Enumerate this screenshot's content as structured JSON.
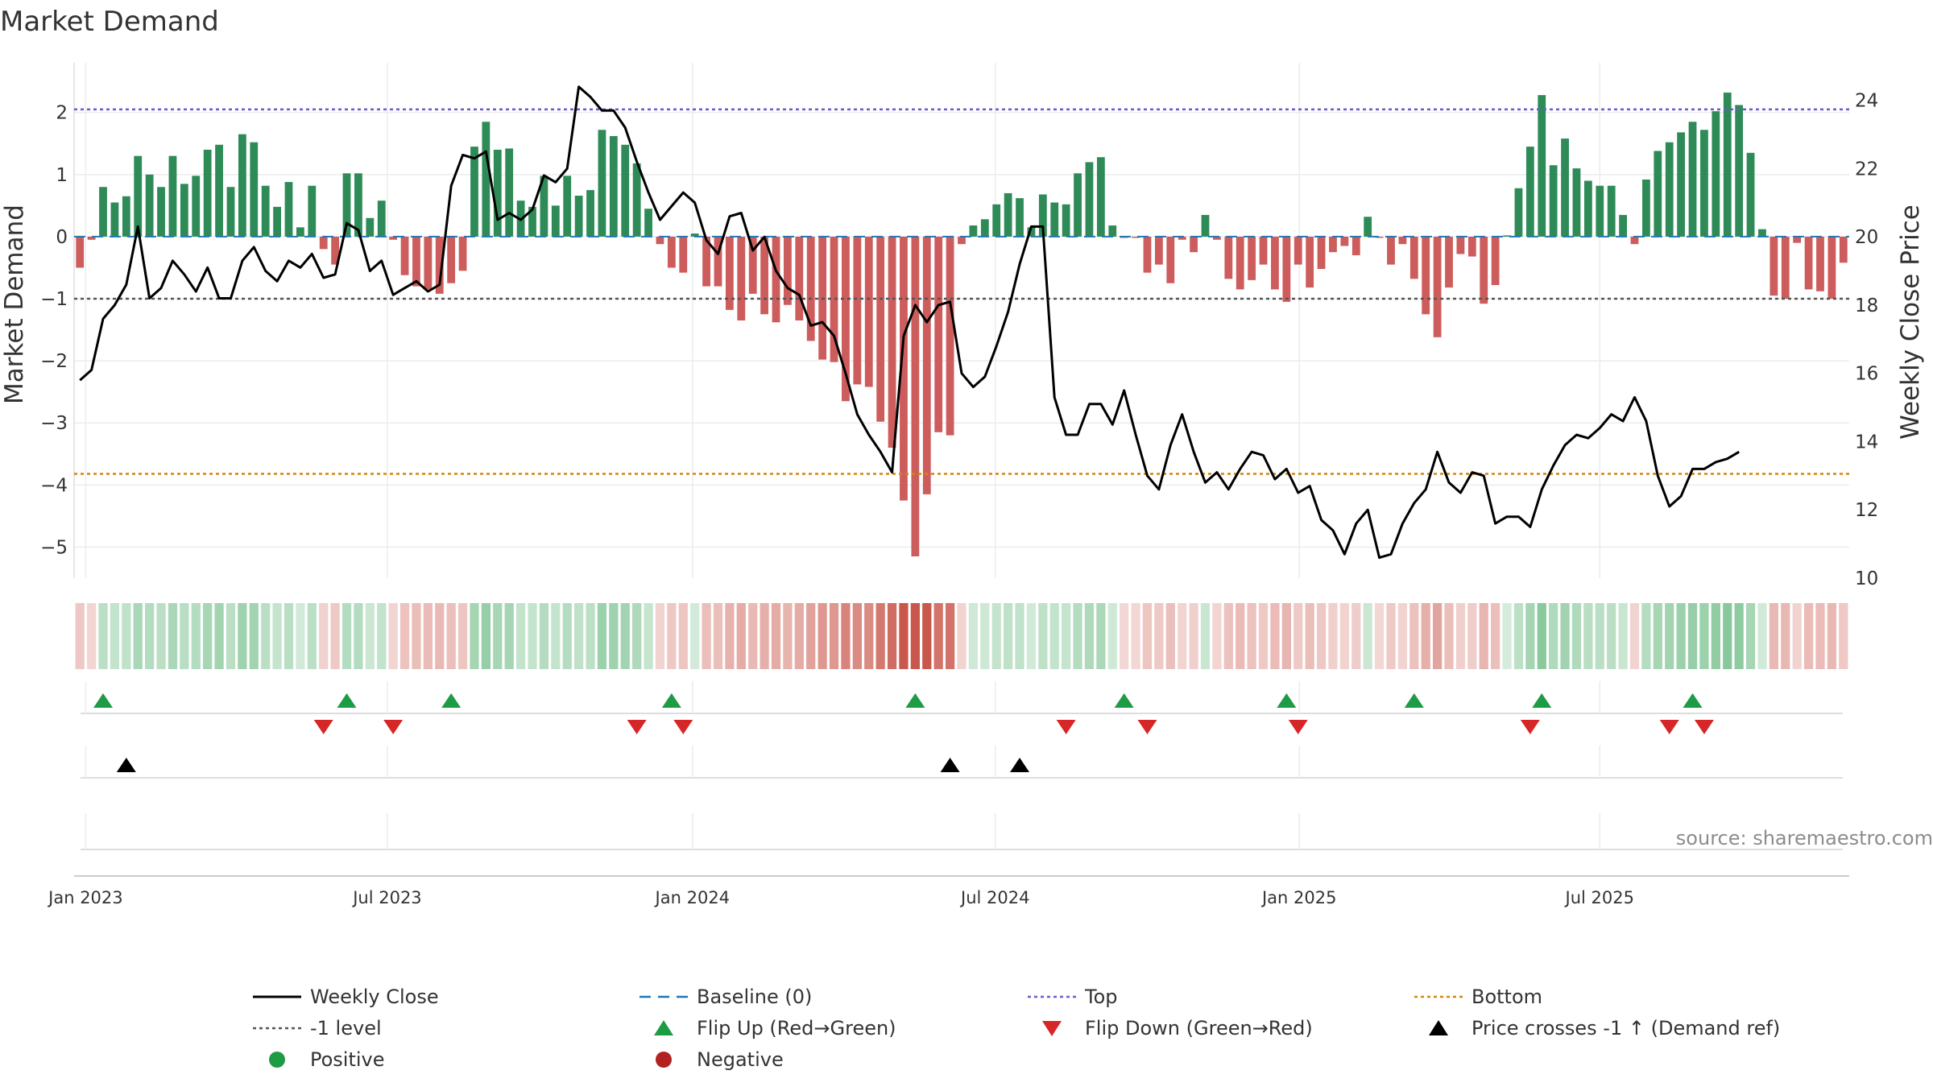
{
  "chart_data": {
    "type": "bar",
    "title": "Market Demand",
    "ylabel_left": "Market Demand",
    "ylabel_right": "Weekly Close Price",
    "ylim_left": [
      -5.5,
      2.8
    ],
    "ylim_right": [
      10,
      25.1
    ],
    "yticks_left": [
      "2",
      "1",
      "0",
      "−1",
      "−2",
      "−3",
      "−4",
      "−5"
    ],
    "yticks_right": [
      "24",
      "22",
      "20",
      "18",
      "16",
      "14",
      "12",
      "10"
    ],
    "yticks_left_values": [
      2,
      1,
      0,
      -1,
      -2,
      -3,
      -4,
      -5
    ],
    "yticks_right_values": [
      24,
      22,
      20,
      18,
      16,
      14,
      12,
      10
    ],
    "xticks": [
      "Jan 2023",
      "Jul 2023",
      "Jan 2024",
      "Jul 2024",
      "Jan 2025",
      "Jul 2025"
    ],
    "xticks_week_index": [
      1,
      27,
      53.3,
      79.4,
      105.6,
      131.5
    ],
    "reference_lines": {
      "top": 2.05,
      "minus_one": -1,
      "bottom": -3.82,
      "baseline": 0
    },
    "demand": [
      -0.5,
      -0.05,
      0.8,
      0.55,
      0.65,
      1.3,
      1.0,
      0.8,
      1.3,
      0.85,
      0.98,
      1.4,
      1.48,
      0.8,
      1.65,
      1.52,
      0.82,
      0.48,
      0.88,
      0.15,
      0.82,
      -0.2,
      -0.45,
      1.02,
      1.02,
      0.3,
      0.58,
      -0.05,
      -0.62,
      -0.8,
      -0.85,
      -0.92,
      -0.75,
      -0.55,
      1.45,
      1.85,
      1.4,
      1.42,
      0.58,
      0.48,
      0.98,
      0.5,
      0.98,
      0.66,
      0.75,
      1.72,
      1.62,
      1.48,
      1.18,
      0.45,
      -0.12,
      -0.5,
      -0.58,
      0.05,
      -0.8,
      -0.8,
      -1.18,
      -1.35,
      -0.92,
      -1.25,
      -1.38,
      -1.1,
      -1.35,
      -1.68,
      -1.98,
      -2.02,
      -2.65,
      -2.38,
      -2.42,
      -2.98,
      -3.4,
      -4.25,
      -5.15,
      -4.15,
      -3.15,
      -3.2,
      -0.12,
      0.18,
      0.28,
      0.52,
      0.7,
      0.62,
      0.15,
      0.68,
      0.55,
      0.52,
      1.02,
      1.2,
      1.28,
      0.18,
      -0.02,
      -0.02,
      -0.58,
      -0.45,
      -0.75,
      -0.05,
      -0.25,
      0.35,
      -0.05,
      -0.68,
      -0.85,
      -0.7,
      -0.45,
      -0.85,
      -1.05,
      -0.45,
      -0.82,
      -0.52,
      -0.25,
      -0.15,
      -0.3,
      0.32,
      -0.02,
      -0.45,
      -0.12,
      -0.68,
      -1.25,
      -1.62,
      -0.82,
      -0.28,
      -0.32,
      -1.08,
      -0.78,
      0.02,
      0.78,
      1.45,
      2.28,
      1.15,
      1.58,
      1.1,
      0.9,
      0.82,
      0.82,
      0.35,
      -0.12,
      0.92,
      1.38,
      1.52,
      1.68,
      1.85,
      1.72,
      2.02,
      2.32,
      2.12,
      1.35,
      0.12,
      -0.95,
      -1.0,
      -0.1,
      -0.85,
      -0.88,
      -1.0,
      -0.42
    ],
    "weekly_close": [
      15.8,
      16.1,
      17.6,
      18.0,
      18.6,
      20.3,
      18.2,
      18.5,
      19.3,
      18.9,
      18.4,
      19.1,
      18.2,
      18.2,
      19.3,
      19.7,
      19.0,
      18.7,
      19.3,
      19.1,
      19.5,
      18.8,
      18.9,
      20.4,
      20.2,
      19.0,
      19.3,
      18.3,
      18.5,
      18.7,
      18.4,
      18.6,
      21.5,
      22.4,
      22.3,
      22.5,
      20.5,
      20.7,
      20.5,
      20.8,
      21.8,
      21.6,
      22.0,
      24.4,
      24.1,
      23.7,
      23.7,
      23.2,
      22.2,
      21.3,
      20.5,
      20.9,
      21.3,
      21.0,
      19.9,
      19.5,
      20.6,
      20.7,
      19.6,
      20.0,
      19.0,
      18.5,
      18.3,
      17.4,
      17.5,
      17.1,
      16.0,
      14.8,
      14.2,
      13.7,
      13.1,
      17.1,
      18.0,
      17.5,
      18.0,
      18.1,
      16.0,
      15.6,
      15.9,
      16.8,
      17.8,
      19.2,
      20.3,
      20.3,
      15.3,
      14.2,
      14.2,
      15.1,
      15.1,
      14.5,
      15.5,
      14.2,
      13.0,
      12.6,
      13.9,
      14.8,
      13.7,
      12.8,
      13.1,
      12.6,
      13.2,
      13.7,
      13.6,
      12.9,
      13.2,
      12.5,
      12.7,
      11.7,
      11.4,
      10.7,
      11.6,
      12.0,
      10.6,
      10.7,
      11.6,
      12.2,
      12.6,
      13.7,
      12.8,
      12.5,
      13.1,
      13.0,
      11.6,
      11.8,
      11.8,
      11.5,
      12.6,
      13.3,
      13.9,
      14.2,
      14.1,
      14.4,
      14.8,
      14.6,
      15.3,
      14.6,
      13.0,
      12.1,
      12.4,
      13.2,
      13.2,
      13.4,
      13.5,
      13.7
    ],
    "flip_up_weeks": [
      2,
      23,
      32,
      51,
      72,
      90,
      104,
      115,
      126,
      139
    ],
    "flip_down_weeks": [
      21,
      27,
      48,
      52,
      85,
      92,
      105,
      125,
      137,
      140
    ],
    "price_cross_weeks": [
      4,
      75,
      81
    ],
    "source": "source: sharemaestro.com",
    "legend": [
      {
        "label": "Weekly Close",
        "symbol": "line-solid",
        "color": "#000000"
      },
      {
        "label": "Baseline (0)",
        "symbol": "line-dashed",
        "color": "#1f77b4"
      },
      {
        "label": "Top",
        "symbol": "line-dotted",
        "color": "#6a5acd"
      },
      {
        "label": "Bottom",
        "symbol": "line-dotted",
        "color": "#d4860b"
      },
      {
        "label": "-1 level",
        "symbol": "line-dotted",
        "color": "#555555"
      },
      {
        "label": "Flip Up (Red→Green)",
        "symbol": "triangle-up",
        "color": "#1e9b45"
      },
      {
        "label": "Flip Down (Green→Red)",
        "symbol": "triangle-down",
        "color": "#d62728"
      },
      {
        "label": "Price crosses -1 ↑ (Demand ref)",
        "symbol": "triangle-up",
        "color": "#000000"
      },
      {
        "label": "Positive",
        "symbol": "circle",
        "color": "#1e9b45"
      },
      {
        "label": "Negative",
        "symbol": "circle",
        "color": "#b22222"
      }
    ],
    "colors": {
      "positive_bar": "#2e8b57",
      "negative_bar": "#cd5c5c",
      "heat_green": "#2e9e4f",
      "heat_red": "#c0392b",
      "top_line": "#6a5acd",
      "bottom_line": "#d4860b",
      "minus_one_line": "#555555",
      "baseline": "#1f77b4",
      "price_line": "#000000",
      "flip_up": "#1e9b45",
      "flip_down": "#d62728",
      "price_cross": "#000000"
    }
  }
}
